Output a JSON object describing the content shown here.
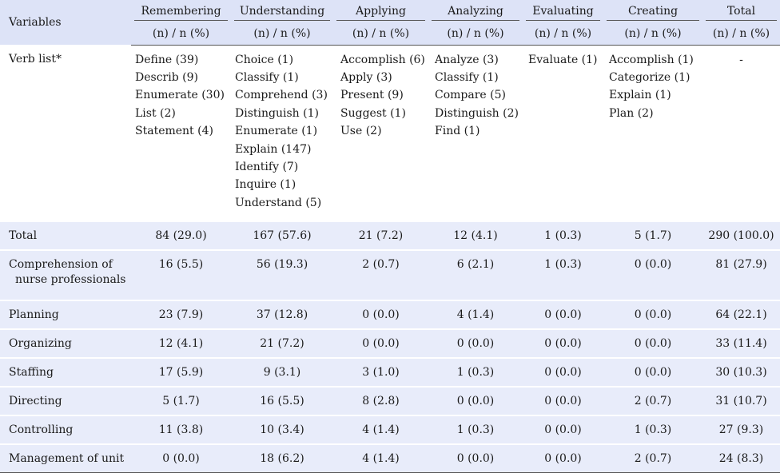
{
  "table": {
    "header": {
      "variables_label": "Variables",
      "groups": [
        "Remembering",
        "Understanding",
        "Applying",
        "Analyzing",
        "Evaluating",
        "Creating",
        "Total"
      ],
      "sub_label": "(n) / n (%)"
    },
    "verb_row": {
      "label": "Verb list*",
      "lists": [
        [
          "Define (39)",
          "Describ (9)",
          "Enumerate (30)",
          "List (2)",
          "Statement (4)"
        ],
        [
          "Choice (1)",
          "Classify (1)",
          "Comprehend (3)",
          "Distinguish (1)",
          "Enumerate (1)",
          "Explain (147)",
          "Identify (7)",
          "Inquire (1)",
          "Understand (5)"
        ],
        [
          "Accomplish (6)",
          "Apply (3)",
          "Present (9)",
          "Suggest (1)",
          "Use (2)"
        ],
        [
          "Analyze (3)",
          "Classify (1)",
          "Compare (5)",
          "Distinguish (2)",
          "Find (1)"
        ],
        [
          "Evaluate (1)"
        ],
        [
          "Accomplish (1)",
          "Categorize (1)",
          "Explain (1)",
          "Plan (2)"
        ],
        [
          "-"
        ]
      ]
    },
    "rows": [
      {
        "label": "Total",
        "values": [
          "84 (29.0)",
          "167 (57.6)",
          "21 (7.2)",
          "12 (4.1)",
          "1 (0.3)",
          "5 (1.7)",
          "290 (100.0)"
        ]
      },
      {
        "label": "Comprehension of",
        "label2": "nurse professionals",
        "values": [
          "16 (5.5)",
          "56 (19.3)",
          "2 (0.7)",
          "6 (2.1)",
          "1 (0.3)",
          "0 (0.0)",
          "81 (27.9)"
        ]
      },
      {
        "label": "Planning",
        "values": [
          "23 (7.9)",
          "37 (12.8)",
          "0 (0.0)",
          "4 (1.4)",
          "0 (0.0)",
          "0 (0.0)",
          "64 (22.1)"
        ]
      },
      {
        "label": "Organizing",
        "values": [
          "12 (4.1)",
          "21 (7.2)",
          "0 (0.0)",
          "0 (0.0)",
          "0 (0.0)",
          "0 (0.0)",
          "33 (11.4)"
        ]
      },
      {
        "label": "Staffing",
        "values": [
          "17 (5.9)",
          "9 (3.1)",
          "3 (1.0)",
          "1 (0.3)",
          "0 (0.0)",
          "0 (0.0)",
          "30 (10.3)"
        ]
      },
      {
        "label": "Directing",
        "values": [
          "5 (1.7)",
          "16 (5.5)",
          "8 (2.8)",
          "0 (0.0)",
          "0 (0.0)",
          "2 (0.7)",
          "31 (10.7)"
        ]
      },
      {
        "label": "Controlling",
        "values": [
          "11 (3.8)",
          "10 (3.4)",
          "4 (1.4)",
          "1 (0.3)",
          "0 (0.0)",
          "1 (0.3)",
          "27 (9.3)"
        ]
      },
      {
        "label": "Management of unit",
        "values": [
          "0 (0.0)",
          "18 (6.2)",
          "4 (1.4)",
          "0 (0.0)",
          "0 (0.0)",
          "2 (0.7)",
          "24 (8.3)"
        ]
      }
    ]
  }
}
